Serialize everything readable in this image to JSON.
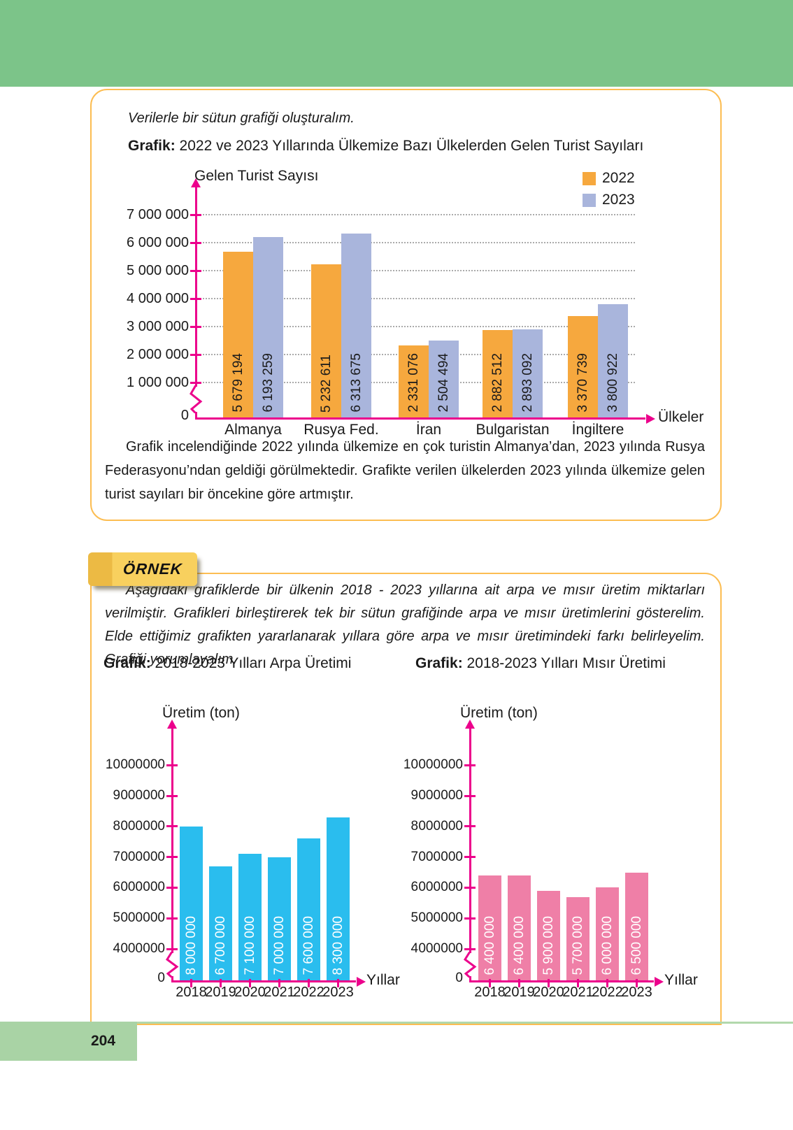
{
  "page": {
    "number": "204"
  },
  "colors": {
    "header_green": "#7cc489",
    "footer_green": "#a9d3a5",
    "box_border": "#fcbd52",
    "axis_magenta": "#ec008c",
    "grid_gray": "#ababab",
    "bar_2022": "#f6a83e",
    "bar_2023": "#a9b5dc",
    "bar_arpa": "#2abdee",
    "bar_misir": "#ef7fa7",
    "ornek_yellow": "#f8d05e",
    "ornek_yellow_dark": "#ecba44"
  },
  "section1": {
    "intro": "Verilerle bir sütun grafiği oluşturalım.",
    "analysis": "Grafik incelendiğinde 2022 yılında ülkemize en çok turistin Almanya’dan, 2023 yılında Rusya Federasyonu’ndan geldiği görülmektedir. Grafikte verilen ülkelerden 2023 yılında ülkemize gelen turist sayıları bir öncekine göre artmıştır."
  },
  "ornek": {
    "label": "ÖRNEK",
    "text": "Aşağıdaki grafiklerde bir ülkenin 2018 - 2023 yıllarına ait arpa ve mısır üretim miktarları verilmiştir. Grafikleri birleştirerek tek bir sütun grafiğinde arpa ve mısır üretimlerini gösterelim. Elde ettiğimiz grafikten yararlanarak yıllara göre arpa ve mısır üretimindeki farkı belirleyelim. Grafiği yorumlayalım."
  },
  "chart_data": [
    {
      "id": "tourists",
      "type": "bar",
      "title_prefix": "Grafik:",
      "title": "2022 ve 2023 Yıllarında Ülkemize Bazı Ülkelerden Gelen Turist Sayıları",
      "ylabel": "Gelen Turist Sayısı",
      "xlabel": "Ülkeler",
      "categories": [
        "Almanya",
        "Rusya Fed.",
        "İran",
        "Bulgaristan",
        "İngiltere"
      ],
      "series": [
        {
          "name": "2022",
          "color": "bar_2022",
          "values": [
            5679194,
            5232611,
            2331076,
            2882512,
            3370739
          ],
          "value_labels": [
            "5 679 194",
            "5 232 611",
            "2 331 076",
            "2 882 512",
            "3 370 739"
          ]
        },
        {
          "name": "2023",
          "color": "bar_2023",
          "values": [
            6193259,
            6313675,
            2504494,
            2893092,
            3800922
          ],
          "value_labels": [
            "6 193 259",
            "6 313 675",
            "2 504 494",
            "2 893 092",
            "3 800 922"
          ]
        }
      ],
      "ylim": [
        0,
        7000000
      ],
      "yticks": [
        1000000,
        2000000,
        3000000,
        4000000,
        5000000,
        6000000,
        7000000
      ],
      "ytick_labels": [
        "1 000 000",
        "2 000 000",
        "3 000 000",
        "4 000 000",
        "5 000 000",
        "6 000 000",
        "7 000 000"
      ],
      "zero_label": "0",
      "axis_break": true,
      "grid": true,
      "legend_position": "top-right"
    },
    {
      "id": "arpa",
      "type": "bar",
      "title_prefix": "Grafik:",
      "title": "2018-2023 Yılları Arpa Üretimi",
      "ylabel": "Üretim (ton)",
      "xlabel": "Yıllar",
      "categories": [
        "2018",
        "2019",
        "2020",
        "2021",
        "2022",
        "2023"
      ],
      "series": [
        {
          "name": "Arpa",
          "color": "bar_arpa",
          "values": [
            8000000,
            6700000,
            7100000,
            7000000,
            7600000,
            8300000
          ],
          "value_labels": [
            "8 000 000",
            "6 700 000",
            "7 100 000",
            "7 000 000",
            "7 600 000",
            "8 300 000"
          ]
        }
      ],
      "ylim": [
        0,
        10000000
      ],
      "yticks": [
        4000000,
        5000000,
        6000000,
        7000000,
        8000000,
        9000000,
        10000000
      ],
      "ytick_labels": [
        "4 000 000",
        "5 000 000",
        "6 000 000",
        "7 000 000",
        "8 000 000",
        "9 000 000",
        "10 000 000"
      ],
      "zero_label": "0",
      "axis_break": true,
      "grid": false,
      "xticks": true
    },
    {
      "id": "misir",
      "type": "bar",
      "title_prefix": "Grafik:",
      "title": "2018-2023 Yılları Mısır Üretimi",
      "ylabel": "Üretim (ton)",
      "xlabel": "Yıllar",
      "categories": [
        "2018",
        "2019",
        "2020",
        "2021",
        "2022",
        "2023"
      ],
      "series": [
        {
          "name": "Mısır",
          "color": "bar_misir",
          "values": [
            6400000,
            6400000,
            5900000,
            5700000,
            6000000,
            6500000
          ],
          "value_labels": [
            "6 400 000",
            "6 400 000",
            "5 900 000",
            "5 700 000",
            "6 000 000",
            "6 500 000"
          ]
        }
      ],
      "ylim": [
        0,
        10000000
      ],
      "yticks": [
        4000000,
        5000000,
        6000000,
        7000000,
        8000000,
        9000000,
        10000000
      ],
      "ytick_labels": [
        "4 000 000",
        "5 000 000",
        "6 000 000",
        "7 000 000",
        "8 000 000",
        "9 000 000",
        "10 000 000"
      ],
      "zero_label": "0",
      "axis_break": true,
      "grid": false,
      "xticks": true
    }
  ]
}
